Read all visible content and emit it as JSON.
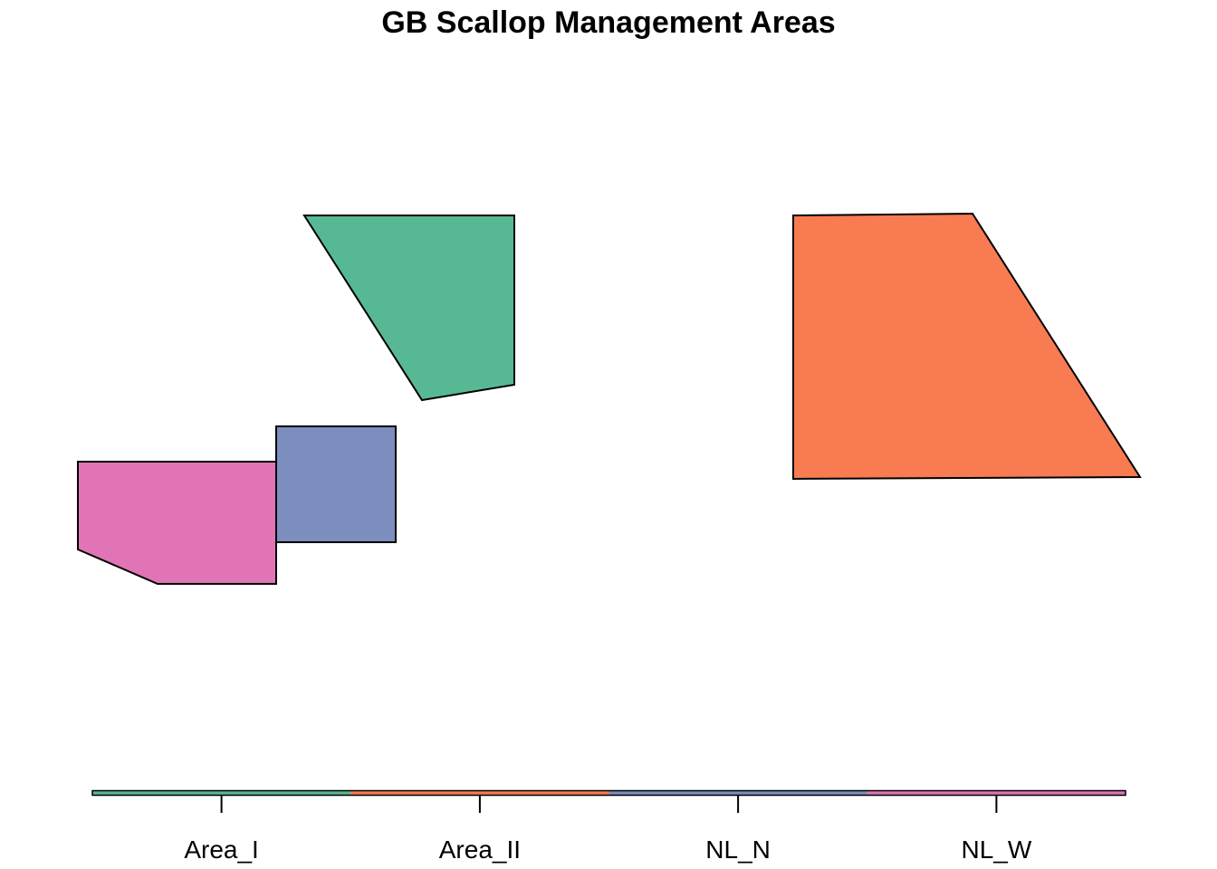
{
  "map": {
    "title": "GB Scallop Management Areas",
    "areas": [
      {
        "name": "Area_I",
        "color": "#57b994"
      },
      {
        "name": "Area_II",
        "color": "#f87b52"
      },
      {
        "name": "NL_N",
        "color": "#7b8ebe"
      },
      {
        "name": "NL_W",
        "color": "#e074b5"
      }
    ]
  },
  "legend": {
    "labels": [
      "Area_I",
      "Area_II",
      "NL_N",
      "NL_W"
    ],
    "colors": [
      "#57b994",
      "#f87b52",
      "#7b8ebe",
      "#e074b5"
    ]
  }
}
